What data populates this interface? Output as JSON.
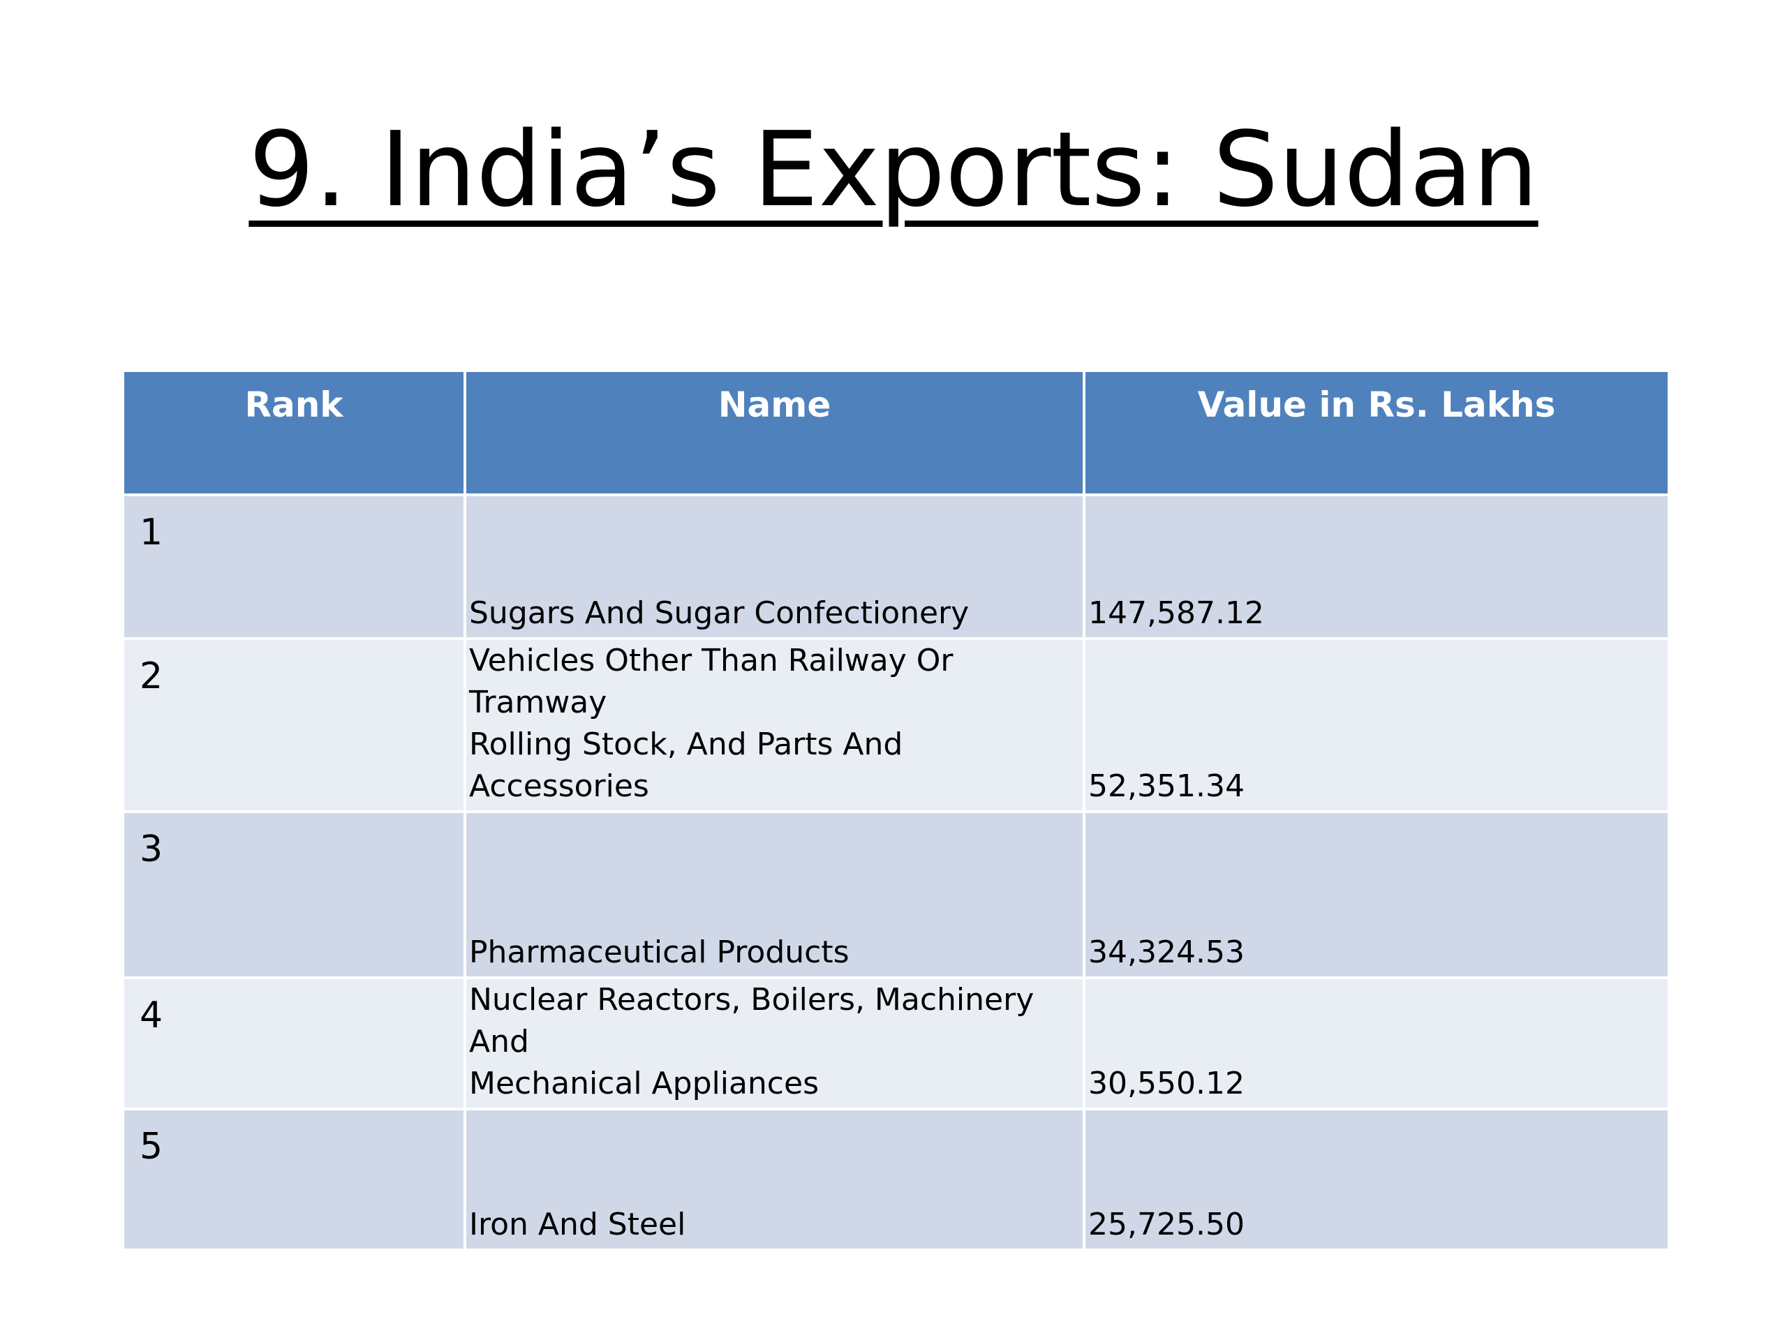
{
  "slide": {
    "title": "9. India’s Exports: Sudan"
  },
  "table": {
    "headers": {
      "rank": "Rank",
      "name": "Name",
      "value": "Value in Rs. Lakhs"
    },
    "rows": [
      {
        "rank": "1",
        "name": "Sugars And Sugar Confectionery",
        "value": "147,587.12"
      },
      {
        "rank": "2",
        "name": "Vehicles Other Than Railway Or Tramway\nRolling Stock, And Parts And Accessories",
        "value": "52,351.34"
      },
      {
        "rank": "3",
        "name": "Pharmaceutical Products",
        "value": "34,324.53"
      },
      {
        "rank": "4",
        "name": "Nuclear Reactors, Boilers, Machinery And\nMechanical Appliances",
        "value": "30,550.12"
      },
      {
        "rank": "5",
        "name": "Iron And Steel",
        "value": "25,725.50"
      }
    ]
  },
  "colors": {
    "header_background": "#4f81bd",
    "row_band_dark": "#d0d8e8",
    "row_band_light": "#e9edf4"
  }
}
